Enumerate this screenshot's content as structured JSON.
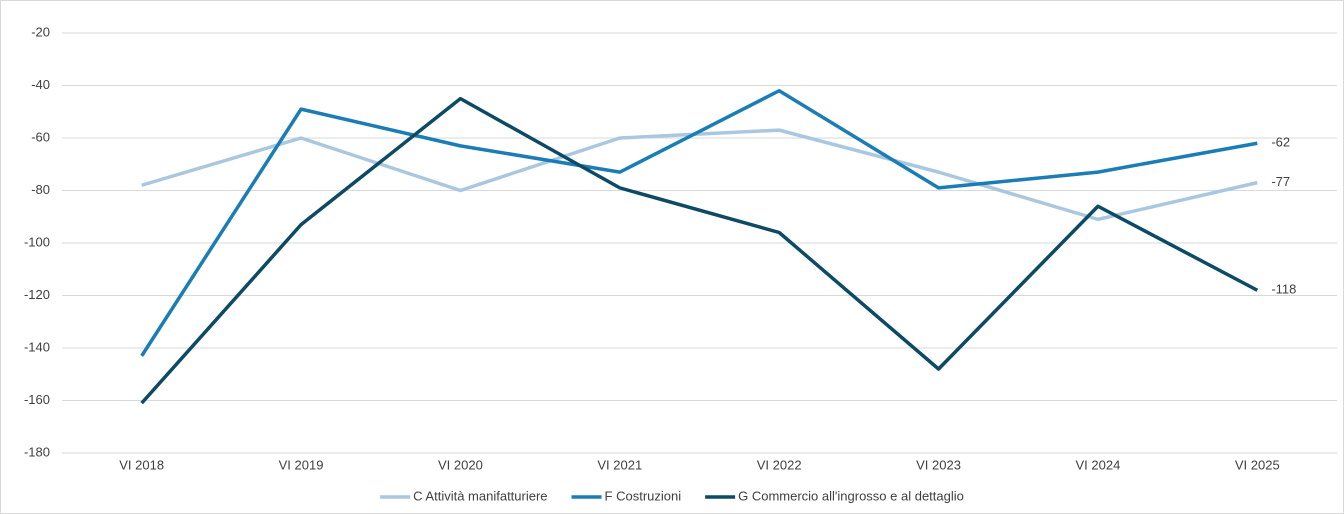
{
  "chart_data": {
    "type": "line",
    "categories": [
      "VI 2018",
      "VI 2019",
      "VI 2020",
      "VI 2021",
      "VI 2022",
      "VI 2023",
      "VI 2024",
      "VI 2025"
    ],
    "series": [
      {
        "name": "C Attività manifatturiere",
        "color": "#a9c8e0",
        "values": [
          -78,
          -60,
          -80,
          -60,
          -57,
          -73,
          -91,
          -77
        ]
      },
      {
        "name": "F Costruzioni",
        "color": "#1a7db5",
        "values": [
          -143,
          -49,
          -63,
          -73,
          -42,
          -79,
          -73,
          -62
        ]
      },
      {
        "name": "G Commercio all'ingrosso e al dettaglio",
        "color": "#0d4a66",
        "values": [
          -161,
          -93,
          -45,
          -79,
          -96,
          -148,
          -86,
          -118
        ]
      }
    ],
    "ylim": [
      -180,
      -20
    ],
    "yticks": [
      -180,
      -160,
      -140,
      -120,
      -100,
      -80,
      -60,
      -40,
      -20
    ],
    "grid": true,
    "legend": "bottom",
    "end_labels": true
  }
}
